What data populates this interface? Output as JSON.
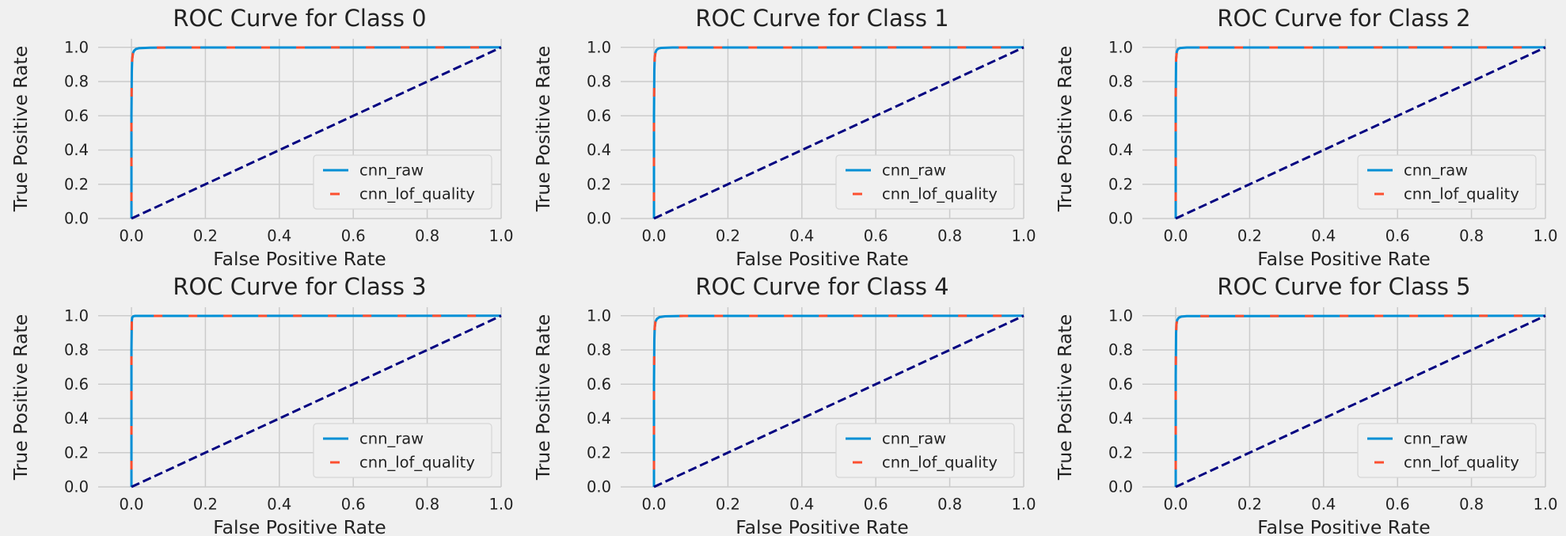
{
  "colors": {
    "background": "#f0f0f0",
    "grid": "#cbcbcb",
    "cnn_raw": "#008fd5",
    "cnn_lof_quality": "#fc4f30",
    "diagonal": "#000080"
  },
  "chart_data": [
    {
      "type": "line",
      "title": "ROC Curve for Class 0",
      "xlabel": "False Positive Rate",
      "ylabel": "True Positive Rate",
      "xlim": [
        -0.09,
        1.0
      ],
      "ylim": [
        0.0,
        1.05
      ],
      "xticks": [
        "0.0",
        "0.2",
        "0.4",
        "0.6",
        "0.8",
        "1.0"
      ],
      "yticks": [
        "0.0",
        "0.2",
        "0.4",
        "0.6",
        "0.8",
        "1.0"
      ],
      "grid": true,
      "legend_position": "lower-right",
      "series": [
        {
          "name": "cnn_raw",
          "style": "solid",
          "x": [
            0,
            0,
            0.001,
            0.002,
            0.004,
            0.007,
            0.012,
            0.02,
            0.05,
            0.1,
            1.0
          ],
          "y": [
            0,
            0.6,
            0.86,
            0.93,
            0.965,
            0.98,
            0.99,
            0.995,
            0.998,
            0.999,
            1.0
          ]
        },
        {
          "name": "cnn_lof_quality",
          "style": "dashed",
          "x": [
            0,
            0,
            0.001,
            0.002,
            0.004,
            0.007,
            0.012,
            0.02,
            0.05,
            0.1,
            1.0
          ],
          "y": [
            0,
            0.6,
            0.86,
            0.93,
            0.965,
            0.98,
            0.99,
            0.995,
            0.998,
            0.999,
            1.0
          ]
        },
        {
          "name": "",
          "style": "chance",
          "x": [
            0,
            1
          ],
          "y": [
            0,
            1
          ]
        }
      ]
    },
    {
      "type": "line",
      "title": "ROC Curve for Class 1",
      "xlabel": "False Positive Rate",
      "ylabel": "True Positive Rate",
      "xlim": [
        -0.09,
        1.0
      ],
      "ylim": [
        0.0,
        1.05
      ],
      "xticks": [
        "0.0",
        "0.2",
        "0.4",
        "0.6",
        "0.8",
        "1.0"
      ],
      "yticks": [
        "0.0",
        "0.2",
        "0.4",
        "0.6",
        "0.8",
        "1.0"
      ],
      "grid": true,
      "legend_position": "lower-right",
      "series": [
        {
          "name": "cnn_raw",
          "style": "solid",
          "x": [
            0,
            0,
            0.001,
            0.002,
            0.004,
            0.007,
            0.012,
            0.02,
            0.05,
            1.0
          ],
          "y": [
            0,
            0.6,
            0.87,
            0.94,
            0.97,
            0.985,
            0.993,
            0.997,
            0.999,
            1.0
          ]
        },
        {
          "name": "cnn_lof_quality",
          "style": "dashed",
          "x": [
            0,
            0,
            0.001,
            0.002,
            0.004,
            0.007,
            0.012,
            0.02,
            0.05,
            1.0
          ],
          "y": [
            0,
            0.6,
            0.87,
            0.94,
            0.97,
            0.985,
            0.993,
            0.997,
            0.999,
            1.0
          ]
        },
        {
          "name": "",
          "style": "chance",
          "x": [
            0,
            1
          ],
          "y": [
            0,
            1
          ]
        }
      ]
    },
    {
      "type": "line",
      "title": "ROC Curve for Class 2",
      "xlabel": "False Positive Rate",
      "ylabel": "True Positive Rate",
      "xlim": [
        -0.09,
        1.0
      ],
      "ylim": [
        0.0,
        1.05
      ],
      "xticks": [
        "0.0",
        "0.2",
        "0.4",
        "0.6",
        "0.8",
        "1.0"
      ],
      "yticks": [
        "0.0",
        "0.2",
        "0.4",
        "0.6",
        "0.8",
        "1.0"
      ],
      "grid": true,
      "legend_position": "lower-right",
      "series": [
        {
          "name": "cnn_raw",
          "style": "solid",
          "x": [
            0,
            0,
            0.001,
            0.003,
            0.006,
            0.012,
            0.03,
            1.0
          ],
          "y": [
            0,
            0.7,
            0.93,
            0.975,
            0.99,
            0.996,
            0.999,
            1.0
          ]
        },
        {
          "name": "cnn_lof_quality",
          "style": "dashed",
          "x": [
            0,
            0,
            0.001,
            0.003,
            0.006,
            0.012,
            0.03,
            1.0
          ],
          "y": [
            0,
            0.7,
            0.93,
            0.975,
            0.99,
            0.996,
            0.999,
            1.0
          ]
        },
        {
          "name": "",
          "style": "chance",
          "x": [
            0,
            1
          ],
          "y": [
            0,
            1
          ]
        }
      ]
    },
    {
      "type": "line",
      "title": "ROC Curve for Class 3",
      "xlabel": "False Positive Rate",
      "ylabel": "True Positive Rate",
      "xlim": [
        -0.09,
        1.0
      ],
      "ylim": [
        0.0,
        1.05
      ],
      "xticks": [
        "0.0",
        "0.2",
        "0.4",
        "0.6",
        "0.8",
        "1.0"
      ],
      "yticks": [
        "0.0",
        "0.2",
        "0.4",
        "0.6",
        "0.8",
        "1.0"
      ],
      "grid": true,
      "legend_position": "lower-right",
      "series": [
        {
          "name": "cnn_raw",
          "style": "solid",
          "x": [
            0,
            0,
            0.001,
            0.002,
            0.005,
            0.01,
            1.0
          ],
          "y": [
            0,
            0.8,
            0.97,
            0.99,
            0.997,
            0.999,
            1.0
          ]
        },
        {
          "name": "cnn_lof_quality",
          "style": "dashed",
          "x": [
            0,
            0,
            0.001,
            0.002,
            0.005,
            0.01,
            1.0
          ],
          "y": [
            0,
            0.8,
            0.97,
            0.99,
            0.997,
            0.999,
            1.0
          ]
        },
        {
          "name": "",
          "style": "chance",
          "x": [
            0,
            1
          ],
          "y": [
            0,
            1
          ]
        }
      ]
    },
    {
      "type": "line",
      "title": "ROC Curve for Class 4",
      "xlabel": "False Positive Rate",
      "ylabel": "True Positive Rate",
      "xlim": [
        -0.09,
        1.0
      ],
      "ylim": [
        0.0,
        1.05
      ],
      "xticks": [
        "0.0",
        "0.2",
        "0.4",
        "0.6",
        "0.8",
        "1.0"
      ],
      "yticks": [
        "0.0",
        "0.2",
        "0.4",
        "0.6",
        "0.8",
        "1.0"
      ],
      "grid": true,
      "legend_position": "lower-right",
      "series": [
        {
          "name": "cnn_raw",
          "style": "solid",
          "x": [
            0,
            0,
            0.001,
            0.002,
            0.004,
            0.008,
            0.015,
            0.03,
            0.08,
            1.0
          ],
          "y": [
            0,
            0.6,
            0.86,
            0.93,
            0.965,
            0.982,
            0.992,
            0.997,
            0.999,
            1.0
          ]
        },
        {
          "name": "cnn_lof_quality",
          "style": "dashed",
          "x": [
            0,
            0,
            0.001,
            0.002,
            0.004,
            0.008,
            0.015,
            0.03,
            0.08,
            1.0
          ],
          "y": [
            0,
            0.6,
            0.86,
            0.93,
            0.965,
            0.982,
            0.992,
            0.997,
            0.999,
            1.0
          ]
        },
        {
          "name": "",
          "style": "chance",
          "x": [
            0,
            1
          ],
          "y": [
            0,
            1
          ]
        }
      ]
    },
    {
      "type": "line",
      "title": "ROC Curve for Class 5",
      "xlabel": "False Positive Rate",
      "ylabel": "True Positive Rate",
      "xlim": [
        -0.09,
        1.0
      ],
      "ylim": [
        0.0,
        1.05
      ],
      "xticks": [
        "0.0",
        "0.2",
        "0.4",
        "0.6",
        "0.8",
        "1.0"
      ],
      "yticks": [
        "0.0",
        "0.2",
        "0.4",
        "0.6",
        "0.8",
        "1.0"
      ],
      "grid": true,
      "legend_position": "lower-right",
      "series": [
        {
          "name": "cnn_raw",
          "style": "solid",
          "x": [
            0,
            0,
            0.001,
            0.002,
            0.004,
            0.008,
            0.015,
            0.03,
            1.0
          ],
          "y": [
            0,
            0.65,
            0.9,
            0.95,
            0.975,
            0.988,
            0.995,
            0.998,
            1.0
          ]
        },
        {
          "name": "cnn_lof_quality",
          "style": "dashed",
          "x": [
            0,
            0,
            0.001,
            0.002,
            0.004,
            0.008,
            0.015,
            0.03,
            1.0
          ],
          "y": [
            0,
            0.65,
            0.9,
            0.95,
            0.975,
            0.988,
            0.995,
            0.998,
            1.0
          ]
        },
        {
          "name": "",
          "style": "chance",
          "x": [
            0,
            1
          ],
          "y": [
            0,
            1
          ]
        }
      ]
    }
  ]
}
